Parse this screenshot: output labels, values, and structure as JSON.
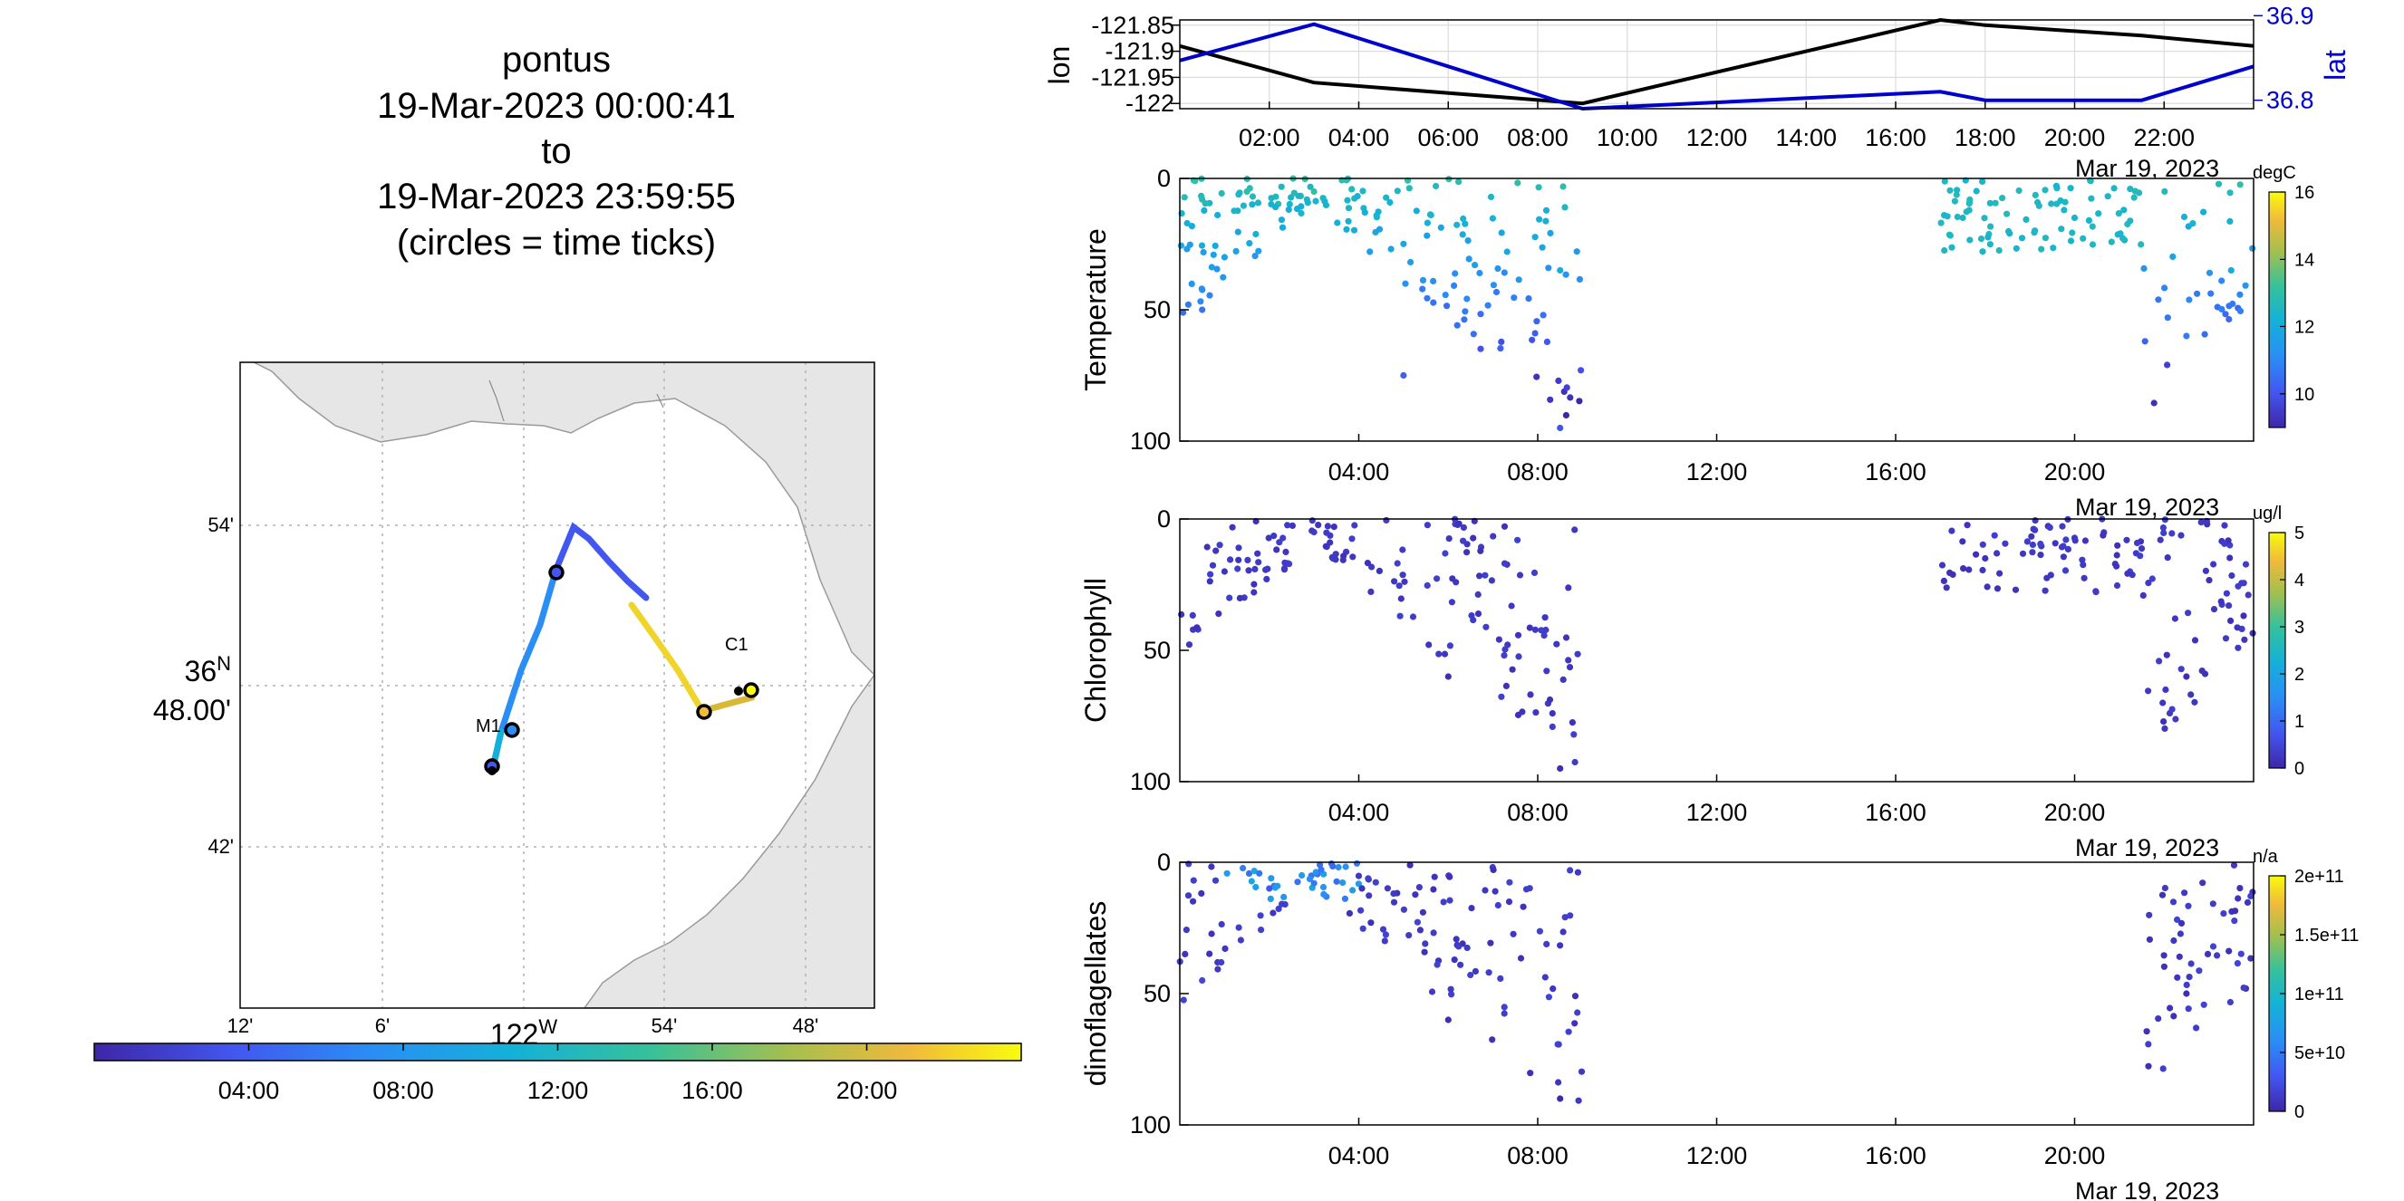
{
  "header": {
    "vehicle": "pontus",
    "start": "19-Mar-2023 00:00:41",
    "to": "to",
    "end": "19-Mar-2023 23:59:55",
    "note": "(circles = time ticks)"
  },
  "map": {
    "lat_label_deg": "36",
    "lat_label_deg_suffix": "N",
    "lat_label_min": "48.00'",
    "lon_label_deg": "122",
    "lon_label_deg_suffix": "W",
    "lat_ticks": [
      "54'",
      "42'"
    ],
    "lon_ticks": [
      "12'",
      "6'",
      "54'",
      "48'"
    ],
    "stations": [
      "M1",
      "C1"
    ],
    "land_color": "#e6e6e6"
  },
  "time_colorbar": {
    "ticks": [
      "04:00",
      "08:00",
      "12:00",
      "16:00",
      "20:00"
    ]
  },
  "track_panel": {
    "left_label": "lon",
    "right_label": "lat",
    "lon_ticks": [
      "-121.85",
      "-121.9",
      "-121.95",
      "-122"
    ],
    "lat_ticks": [
      "36.9",
      "36.8"
    ],
    "x_ticks": [
      "02:00",
      "04:00",
      "06:00",
      "08:00",
      "10:00",
      "12:00",
      "14:00",
      "16:00",
      "18:00",
      "20:00",
      "22:00"
    ],
    "date_label": "Mar 19, 2023",
    "lon_color": "#000000",
    "lat_color": "#0000cc"
  },
  "profile_panels": [
    {
      "label": "Temperature",
      "units": "degC",
      "cbar_ticks": [
        "16",
        "14",
        "12",
        "10"
      ],
      "date_label": "Mar 19, 2023"
    },
    {
      "label": "Chlorophyll",
      "units": "ug/l",
      "cbar_ticks": [
        "5",
        "4",
        "3",
        "2",
        "1",
        "0"
      ],
      "date_label": "Mar 19, 2023"
    },
    {
      "label": "dinoflagellates",
      "units": "n/a",
      "cbar_ticks": [
        "2e+11",
        "1.5e+11",
        "1e+11",
        "5e+10",
        "0"
      ],
      "date_label": "Mar 19, 2023"
    }
  ],
  "depth_ticks": [
    "0",
    "50",
    "100"
  ],
  "profile_x_ticks": [
    "04:00",
    "08:00",
    "12:00",
    "16:00",
    "20:00"
  ],
  "chart_data": [
    {
      "type": "line",
      "title": "",
      "xlabel": "",
      "ylabel": "lon",
      "y2label": "lat",
      "x": [
        "00:00",
        "03:00",
        "09:00",
        "17:00",
        "18:00",
        "21:30",
        "24:00"
      ],
      "series": [
        {
          "name": "lon",
          "color": "#000000",
          "values": [
            -121.89,
            -121.96,
            -122.0,
            -121.84,
            -121.85,
            -121.87,
            -121.89
          ]
        },
        {
          "name": "lat",
          "color": "#0000cc",
          "values": [
            36.847,
            36.89,
            36.79,
            36.81,
            36.8,
            36.8,
            36.84
          ]
        }
      ],
      "ylim": [
        -122.01,
        -121.84
      ],
      "y2lim": [
        36.79,
        36.895
      ]
    },
    {
      "type": "scatter",
      "ylabel": "Temperature",
      "colorbar_label": "degC",
      "clim": [
        9,
        16
      ],
      "ylim": [
        100,
        0
      ],
      "samples": [
        {
          "t": 0.5,
          "d": 8,
          "v": 12.8
        },
        {
          "t": 1.5,
          "d": 5,
          "v": 13.0
        },
        {
          "t": 3.0,
          "d": 5,
          "v": 13.1
        },
        {
          "t": 1.0,
          "d": 30,
          "v": 11.6
        },
        {
          "t": 0.5,
          "d": 50,
          "v": 10.6
        },
        {
          "t": 5.0,
          "d": 75,
          "v": 10.2
        },
        {
          "t": 8.5,
          "d": 95,
          "v": 10.0
        },
        {
          "t": 8.5,
          "d": 35,
          "v": 12.0
        },
        {
          "t": 17.5,
          "d": 15,
          "v": 12.4
        },
        {
          "t": 20.0,
          "d": 15,
          "v": 12.3
        },
        {
          "t": 22.5,
          "d": 60,
          "v": 10.8
        },
        {
          "t": 23.5,
          "d": 35,
          "v": 12.0
        }
      ],
      "gap_hours": [
        9,
        17
      ]
    },
    {
      "type": "scatter",
      "ylabel": "Chlorophyll",
      "colorbar_label": "ug/l",
      "clim": [
        0,
        5
      ],
      "ylim": [
        100,
        0
      ],
      "samples": [
        {
          "t": 1.0,
          "d": 20,
          "v": 0.2
        },
        {
          "t": 3.0,
          "d": 5,
          "v": 0.3
        },
        {
          "t": 6.0,
          "d": 60,
          "v": 0.1
        },
        {
          "t": 8.5,
          "d": 95,
          "v": 0.1
        },
        {
          "t": 18.0,
          "d": 15,
          "v": 0.2
        },
        {
          "t": 22.5,
          "d": 60,
          "v": 0.1
        }
      ],
      "gap_hours": [
        9,
        17
      ]
    },
    {
      "type": "scatter",
      "ylabel": "dinoflagellates",
      "colorbar_label": "n/a",
      "clim": [
        0,
        200000000000
      ],
      "ylim": [
        100,
        0
      ],
      "samples": [
        {
          "t": 2.0,
          "d": 10,
          "v": 30000000000
        },
        {
          "t": 3.0,
          "d": 8,
          "v": 50000000000
        },
        {
          "t": 0.5,
          "d": 45,
          "v": 20000000000
        },
        {
          "t": 6.0,
          "d": 60,
          "v": 5000000000
        },
        {
          "t": 8.5,
          "d": 90,
          "v": 2000000000
        },
        {
          "t": 22.5,
          "d": 50,
          "v": 5000000000
        }
      ],
      "gap_hours": [
        9,
        21.5
      ]
    }
  ]
}
